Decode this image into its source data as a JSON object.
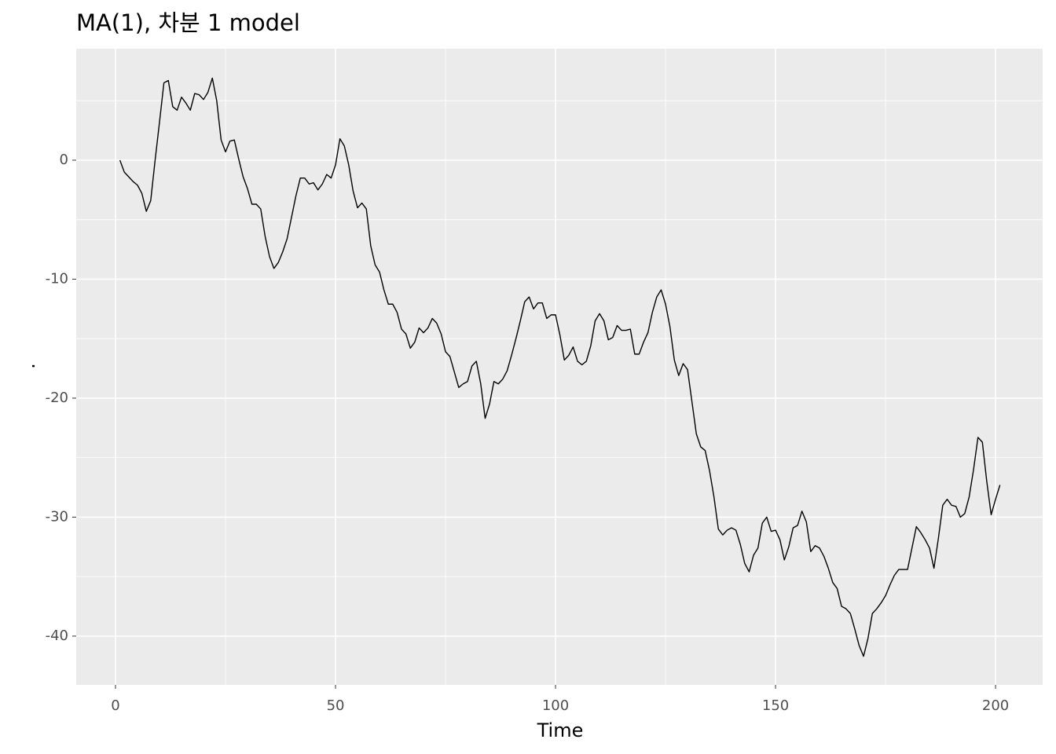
{
  "chart_data": {
    "type": "line",
    "title": "MA(1), 차분 1 model",
    "x_label": "Time",
    "y_label": ".",
    "xlim": [
      -8.93,
      210.7
    ],
    "ylim": [
      -44.1,
      9.37
    ],
    "xticks": [
      0,
      50,
      100,
      150,
      200
    ],
    "yticks": [
      0,
      -10,
      -20,
      -30,
      -40
    ],
    "minor_xticks": [
      25,
      75,
      125,
      175
    ],
    "minor_yticks": [
      5,
      -5,
      -15,
      -25,
      -35
    ],
    "grid": true,
    "x": [
      1,
      2,
      3,
      4,
      5,
      6,
      7,
      8,
      9,
      10,
      11,
      12,
      13,
      14,
      15,
      16,
      17,
      18,
      19,
      20,
      21,
      22,
      23,
      24,
      25,
      26,
      27,
      28,
      29,
      30,
      31,
      32,
      33,
      34,
      35,
      36,
      37,
      38,
      39,
      40,
      41,
      42,
      43,
      44,
      45,
      46,
      47,
      48,
      49,
      50,
      51,
      52,
      53,
      54,
      55,
      56,
      57,
      58,
      59,
      60,
      61,
      62,
      63,
      64,
      65,
      66,
      67,
      68,
      69,
      70,
      71,
      72,
      73,
      74,
      75,
      76,
      77,
      78,
      79,
      80,
      81,
      82,
      83,
      84,
      85,
      86,
      87,
      88,
      89,
      90,
      91,
      92,
      93,
      94,
      95,
      96,
      97,
      98,
      99,
      100,
      101,
      102,
      103,
      104,
      105,
      106,
      107,
      108,
      109,
      110,
      111,
      112,
      113,
      114,
      115,
      116,
      117,
      118,
      119,
      120,
      121,
      122,
      123,
      124,
      125,
      126,
      127,
      128,
      129,
      130,
      131,
      132,
      133,
      134,
      135,
      136,
      137,
      138,
      139,
      140,
      141,
      142,
      143,
      144,
      145,
      146,
      147,
      148,
      149,
      150,
      151,
      152,
      153,
      154,
      155,
      156,
      157,
      158,
      159,
      160,
      161,
      162,
      163,
      164,
      165,
      166,
      167,
      168,
      169,
      170,
      171,
      172,
      173,
      174,
      175,
      176,
      177,
      178,
      179,
      180,
      181,
      182,
      183,
      184,
      185,
      186,
      187,
      188,
      189,
      190,
      191,
      192,
      193,
      194,
      195,
      196,
      197,
      198,
      199,
      200,
      201
    ],
    "series": [
      {
        "color": "#000000",
        "values": [
          0,
          -1,
          -1.4,
          -1.8,
          -2.1,
          -2.8,
          -4.3,
          -3.4,
          0,
          3.2,
          6.5,
          6.7,
          4.5,
          4.2,
          5.3,
          4.8,
          4.2,
          5.6,
          5.5,
          5.1,
          5.7,
          6.9,
          5,
          1.7,
          0.7,
          1.6,
          1.7,
          0.1,
          -1.4,
          -2.4,
          -3.7,
          -3.7,
          -4.1,
          -6.4,
          -8.1,
          -9.1,
          -8.6,
          -7.7,
          -6.6,
          -4.8,
          -3.0,
          -1.5,
          -1.5,
          -2.0,
          -1.9,
          -2.5,
          -2.0,
          -1.2,
          -1.5,
          -0.4,
          1.8,
          1.2,
          -0.4,
          -2.6,
          -4.0,
          -3.6,
          -4.1,
          -7.2,
          -8.8,
          -9.4,
          -10.9,
          -12.1,
          -12.1,
          -12.8,
          -14.2,
          -14.6,
          -15.8,
          -15.3,
          -14.1,
          -14.5,
          -14.1,
          -13.3,
          -13.7,
          -14.6,
          -16.1,
          -16.5,
          -17.8,
          -19.1,
          -18.8,
          -18.6,
          -17.3,
          -16.9,
          -18.8,
          -21.7,
          -20.5,
          -18.6,
          -18.8,
          -18.4,
          -17.7,
          -16.4,
          -15.0,
          -13.5,
          -11.9,
          -11.5,
          -12.5,
          -12.0,
          -12.0,
          -13.3,
          -13.0,
          -13.0,
          -14.7,
          -16.8,
          -16.4,
          -15.7,
          -16.9,
          -17.2,
          -16.9,
          -15.6,
          -13.5,
          -12.9,
          -13.5,
          -15.1,
          -14.9,
          -13.9,
          -14.3,
          -14.3,
          -14.2,
          -16.3,
          -16.3,
          -15.3,
          -14.5,
          -12.8,
          -11.5,
          -10.9,
          -12.1,
          -14.0,
          -16.8,
          -18.1,
          -17.1,
          -17.6,
          -20.3,
          -23.0,
          -24.1,
          -24.4,
          -26.1,
          -28.3,
          -31.0,
          -31.5,
          -31.1,
          -30.9,
          -31.1,
          -32.3,
          -33.9,
          -34.6,
          -33.2,
          -32.6,
          -30.5,
          -30.0,
          -31.2,
          -31.1,
          -31.9,
          -33.6,
          -32.5,
          -30.9,
          -30.7,
          -29.5,
          -30.4,
          -32.9,
          -32.4,
          -32.6,
          -33.3,
          -34.3,
          -35.5,
          -36.0,
          -37.5,
          -37.7,
          -38.1,
          -39.4,
          -40.8,
          -41.7,
          -40.2,
          -38.1,
          -37.7,
          -37.2,
          -36.6,
          -35.7,
          -34.9,
          -34.4,
          -34.4,
          -34.4,
          -32.6,
          -30.8,
          -31.3,
          -31.9,
          -32.6,
          -34.3,
          -31.8,
          -29.0,
          -28.5,
          -29.0,
          -29.1,
          -30.0,
          -29.7,
          -28.3,
          -26.0,
          -23.3,
          -23.7,
          -27.0,
          -29.8,
          -28.5,
          -27.3
        ]
      }
    ]
  }
}
